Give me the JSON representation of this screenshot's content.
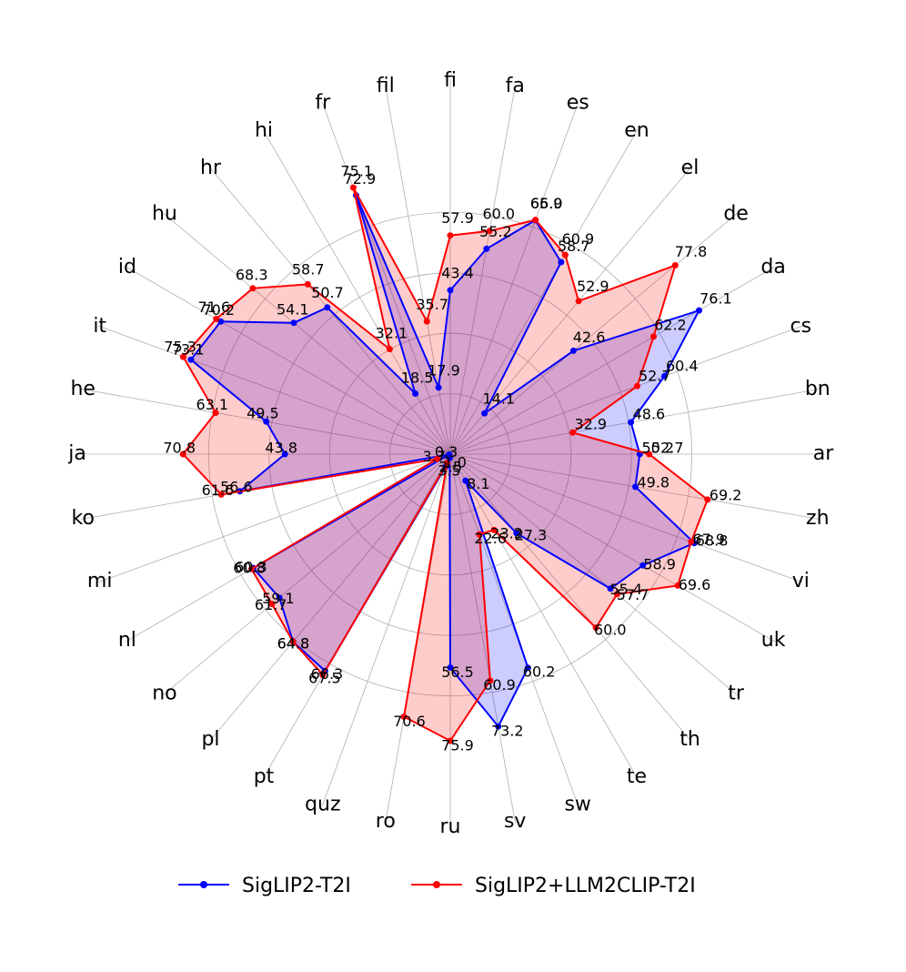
{
  "chart_data": {
    "type": "radar",
    "title": "",
    "categories": [
      "ar",
      "bn",
      "cs",
      "da",
      "de",
      "el",
      "en",
      "es",
      "fa",
      "fi",
      "fil",
      "fr",
      "hi",
      "hr",
      "hu",
      "id",
      "it",
      "he",
      "ja",
      "ko",
      "mi",
      "nl",
      "no",
      "pl",
      "pt",
      "quz",
      "ro",
      "ru",
      "sv",
      "sw",
      "te",
      "th",
      "tr",
      "uk",
      "vi",
      "zh"
    ],
    "rlim": [
      0,
      80
    ],
    "grid": true,
    "legend_position": "bottom",
    "series": [
      {
        "name": "SigLIP2-T2I",
        "color": "#0000ff",
        "fill": "#0000ff",
        "values": [
          50.2,
          48.6,
          60.4,
          76.1,
          42.6,
          14.1,
          58.7,
          65.9,
          55.2,
          43.4,
          17.9,
          72.9,
          18.5,
          50.7,
          54.1,
          70.2,
          73.1,
          49.5,
          43.8,
          56.6,
          0.3,
          60.3,
          59.1,
          64.8,
          66.3,
          3.5,
          1.0,
          56.5,
          73.2,
          60.2,
          8.1,
          27.3,
          55.4,
          58.9,
          68.8,
          49.8
        ],
        "label_values": [
          "50.2",
          "48.6",
          "60.4",
          "76.1",
          "42.6",
          "14.1",
          "58.7",
          "65.9",
          "55.2",
          "43.4",
          "17.9",
          "72.9",
          "18.5",
          "50.7",
          "54.1",
          "70.2",
          "73.1",
          "49.5",
          "43.8",
          "56.6",
          "0.3",
          "60.3",
          "59.1",
          "64.8",
          "66.3",
          "3.5",
          "1.0",
          "56.5",
          "73.2",
          "60.2",
          "8.1",
          "27.3",
          "55.4",
          "58.9",
          "68.8",
          "49.8"
        ]
      },
      {
        "name": "SigLIP2+LLM2CLIP-T2I",
        "color": "#ff0000",
        "fill": "#ff0000",
        "values": [
          52.7,
          32.9,
          52.7,
          62.2,
          77.8,
          52.9,
          60.9,
          66.0,
          60.0,
          57.9,
          35.7,
          75.1,
          32.1,
          58.7,
          68.3,
          71.6,
          75.3,
          63.1,
          70.8,
          61.6,
          3.7,
          60.8,
          61.7,
          64.8,
          67.5,
          2.5,
          70.6,
          75.9,
          60.9,
          22.6,
          23.2,
          60.0,
          57.7,
          69.6,
          67.9,
          69.2
        ],
        "label_values": [
          "52.7",
          "32.9",
          "52.7",
          "62.2",
          "77.8",
          "52.9",
          "60.9",
          "66.0",
          "60.0",
          "57.9",
          "35.7",
          "75.1",
          "32.1",
          "58.7",
          "68.3",
          "71.6",
          "75.3",
          "63.1",
          "70.8",
          "61.6",
          "3.7",
          "60.8",
          "61.7",
          "64.8",
          "67.5",
          "2.5",
          "70.6",
          "75.9",
          "60.9",
          "22.6",
          "23.2",
          "60.0",
          "57.7",
          "69.6",
          "67.9",
          "69.2"
        ]
      }
    ]
  }
}
